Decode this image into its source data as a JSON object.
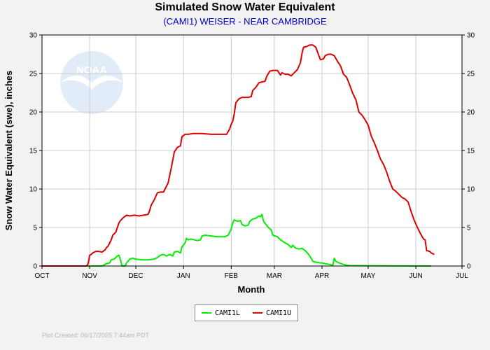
{
  "header": {
    "title": "Simulated Snow Water Equivalent",
    "subtitle": "(CAMI1) WEISER - NEAR CAMBRIDGE"
  },
  "watermark": {
    "text": "NOAA"
  },
  "footer": {
    "text": "Plot Created: 06/17/2025 7:44am PDT"
  },
  "colors": {
    "cami1l": "#00ee00",
    "cami1u": "#dd0000",
    "frame": "#000000",
    "plot_bg": "#ffffff",
    "grid": "#cccccc"
  },
  "chart_data": {
    "type": "line",
    "title": "Simulated Snow Water Equivalent",
    "subtitle": "(CAMI1) WEISER - NEAR CAMBRIDGE",
    "xlabel": "Month",
    "ylabel": "Snow Water Equivalent (swe),  inches",
    "x_unit": "days since Oct 1",
    "xlim": [
      0,
      273
    ],
    "ylim": [
      0,
      30
    ],
    "y_ticks": [
      0,
      5,
      10,
      15,
      20,
      25,
      30
    ],
    "x_ticks": [
      {
        "label": "OCT",
        "day": 0
      },
      {
        "label": "NOV",
        "day": 31
      },
      {
        "label": "DEC",
        "day": 61
      },
      {
        "label": "JAN",
        "day": 92
      },
      {
        "label": "FEB",
        "day": 123
      },
      {
        "label": "MAR",
        "day": 151
      },
      {
        "label": "APR",
        "day": 182
      },
      {
        "label": "MAY",
        "day": 212
      },
      {
        "label": "JUN",
        "day": 243
      },
      {
        "label": "JUL",
        "day": 273
      }
    ],
    "grid": true,
    "legend_position": "bottom-center",
    "series": [
      {
        "name": "CAMI1L",
        "color": "#00ee00",
        "points": [
          [
            0,
            0
          ],
          [
            39,
            0
          ],
          [
            42,
            0.3
          ],
          [
            44,
            0.4
          ],
          [
            45,
            0.8
          ],
          [
            47,
            0.9
          ],
          [
            49,
            1.3
          ],
          [
            50,
            1.4
          ],
          [
            51,
            0.8
          ],
          [
            52,
            0
          ],
          [
            54,
            0
          ],
          [
            55,
            0.4
          ],
          [
            57,
            0.9
          ],
          [
            59,
            1.0
          ],
          [
            61,
            0.9
          ],
          [
            65,
            0.8
          ],
          [
            69,
            0.8
          ],
          [
            73,
            0.9
          ],
          [
            75,
            1.1
          ],
          [
            77,
            1.4
          ],
          [
            79,
            1.5
          ],
          [
            81,
            1.3
          ],
          [
            83,
            1.5
          ],
          [
            85,
            1.3
          ],
          [
            86,
            1.8
          ],
          [
            88,
            1.9
          ],
          [
            90,
            1.7
          ],
          [
            91,
            2.5
          ],
          [
            93,
            3.0
          ],
          [
            94,
            3.6
          ],
          [
            95,
            3.4
          ],
          [
            97,
            3.5
          ],
          [
            101,
            3.3
          ],
          [
            103,
            3.4
          ],
          [
            104,
            3.9
          ],
          [
            106,
            4.0
          ],
          [
            110,
            3.9
          ],
          [
            114,
            3.8
          ],
          [
            119,
            3.8
          ],
          [
            121,
            4.0
          ],
          [
            123,
            4.8
          ],
          [
            124,
            5.6
          ],
          [
            125,
            6.0
          ],
          [
            127,
            5.8
          ],
          [
            129,
            5.9
          ],
          [
            130,
            5.4
          ],
          [
            132,
            5.2
          ],
          [
            134,
            5.3
          ],
          [
            135,
            5.8
          ],
          [
            137,
            6.1
          ],
          [
            139,
            6.2
          ],
          [
            141,
            6.5
          ],
          [
            142,
            6.4
          ],
          [
            143,
            6.7
          ],
          [
            144,
            5.8
          ],
          [
            146,
            5.3
          ],
          [
            147,
            5.0
          ],
          [
            149,
            4.7
          ],
          [
            150,
            4.0
          ],
          [
            153,
            3.8
          ],
          [
            155,
            3.4
          ],
          [
            158,
            3.0
          ],
          [
            160,
            2.8
          ],
          [
            162,
            2.4
          ],
          [
            163,
            2.7
          ],
          [
            165,
            2.3
          ],
          [
            167,
            2.2
          ],
          [
            169,
            2.3
          ],
          [
            171,
            2.0
          ],
          [
            173,
            1.6
          ],
          [
            175,
            1.0
          ],
          [
            176,
            0.6
          ],
          [
            178,
            0.5
          ],
          [
            181,
            0.4
          ],
          [
            182,
            0.4
          ],
          [
            184,
            0.3
          ],
          [
            187,
            0.2
          ],
          [
            189,
            0.1
          ],
          [
            190,
            1.0
          ],
          [
            191,
            0.6
          ],
          [
            193,
            0.4
          ],
          [
            196,
            0.2
          ],
          [
            198,
            0.1
          ],
          [
            200,
            0.05
          ],
          [
            243,
            0
          ],
          [
            253,
            0
          ]
        ]
      },
      {
        "name": "CAMI1U",
        "color": "#dd0000",
        "points": [
          [
            0,
            0
          ],
          [
            29,
            0
          ],
          [
            30,
            0.3
          ],
          [
            31,
            1.4
          ],
          [
            32,
            1.5
          ],
          [
            33,
            1.7
          ],
          [
            35,
            1.9
          ],
          [
            37,
            1.9
          ],
          [
            39,
            1.8
          ],
          [
            41,
            2.1
          ],
          [
            42,
            2.4
          ],
          [
            43,
            2.6
          ],
          [
            44,
            3.0
          ],
          [
            45,
            3.4
          ],
          [
            46,
            4.0
          ],
          [
            48,
            4.4
          ],
          [
            50,
            5.6
          ],
          [
            51,
            5.9
          ],
          [
            53,
            6.3
          ],
          [
            55,
            6.6
          ],
          [
            57,
            6.5
          ],
          [
            60,
            6.6
          ],
          [
            63,
            6.5
          ],
          [
            66,
            6.6
          ],
          [
            69,
            6.7
          ],
          [
            70,
            7.2
          ],
          [
            71,
            7.9
          ],
          [
            73,
            8.6
          ],
          [
            75,
            9.5
          ],
          [
            77,
            9.6
          ],
          [
            79,
            9.6
          ],
          [
            80,
            10.0
          ],
          [
            82,
            10.8
          ],
          [
            84,
            12.7
          ],
          [
            86,
            14.8
          ],
          [
            88,
            15.4
          ],
          [
            90,
            15.6
          ],
          [
            91,
            16.8
          ],
          [
            93,
            17.1
          ],
          [
            95,
            17.1
          ],
          [
            98,
            17.2
          ],
          [
            104,
            17.2
          ],
          [
            110,
            17.1
          ],
          [
            115,
            17.1
          ],
          [
            120,
            17.1
          ],
          [
            122,
            17.8
          ],
          [
            123,
            18.4
          ],
          [
            124,
            18.8
          ],
          [
            125,
            19.8
          ],
          [
            126,
            21.2
          ],
          [
            128,
            21.7
          ],
          [
            130,
            21.9
          ],
          [
            134,
            21.9
          ],
          [
            136,
            22.0
          ],
          [
            137,
            22.8
          ],
          [
            139,
            23.2
          ],
          [
            141,
            23.8
          ],
          [
            143,
            23.9
          ],
          [
            145,
            24.0
          ],
          [
            146,
            24.6
          ],
          [
            148,
            25.3
          ],
          [
            150,
            25.4
          ],
          [
            153,
            25.4
          ],
          [
            155,
            24.8
          ],
          [
            156,
            25.1
          ],
          [
            158,
            24.9
          ],
          [
            160,
            24.9
          ],
          [
            162,
            24.7
          ],
          [
            164,
            25.1
          ],
          [
            166,
            25.5
          ],
          [
            168,
            26.4
          ],
          [
            169,
            27.6
          ],
          [
            170,
            28.4
          ],
          [
            172,
            28.5
          ],
          [
            174,
            28.7
          ],
          [
            176,
            28.7
          ],
          [
            178,
            28.4
          ],
          [
            180,
            27.3
          ],
          [
            181,
            26.8
          ],
          [
            183,
            26.9
          ],
          [
            184,
            27.3
          ],
          [
            186,
            27.5
          ],
          [
            188,
            27.5
          ],
          [
            190,
            27.3
          ],
          [
            192,
            26.6
          ],
          [
            194,
            26.0
          ],
          [
            196,
            24.9
          ],
          [
            198,
            24.5
          ],
          [
            200,
            23.5
          ],
          [
            202,
            22.4
          ],
          [
            204,
            21.6
          ],
          [
            206,
            20.0
          ],
          [
            208,
            19.6
          ],
          [
            210,
            19.0
          ],
          [
            212,
            18.3
          ],
          [
            214,
            16.9
          ],
          [
            216,
            16.0
          ],
          [
            218,
            15.0
          ],
          [
            220,
            13.9
          ],
          [
            222,
            13.2
          ],
          [
            224,
            12.2
          ],
          [
            226,
            11.0
          ],
          [
            228,
            10.0
          ],
          [
            230,
            9.7
          ],
          [
            232,
            9.3
          ],
          [
            234,
            8.9
          ],
          [
            236,
            8.7
          ],
          [
            238,
            8.3
          ],
          [
            240,
            7.0
          ],
          [
            242,
            5.9
          ],
          [
            244,
            5.0
          ],
          [
            246,
            4.2
          ],
          [
            248,
            3.5
          ],
          [
            249,
            3.4
          ],
          [
            250,
            2.0
          ],
          [
            252,
            1.9
          ],
          [
            253,
            1.7
          ],
          [
            255,
            1.5
          ]
        ]
      }
    ]
  }
}
